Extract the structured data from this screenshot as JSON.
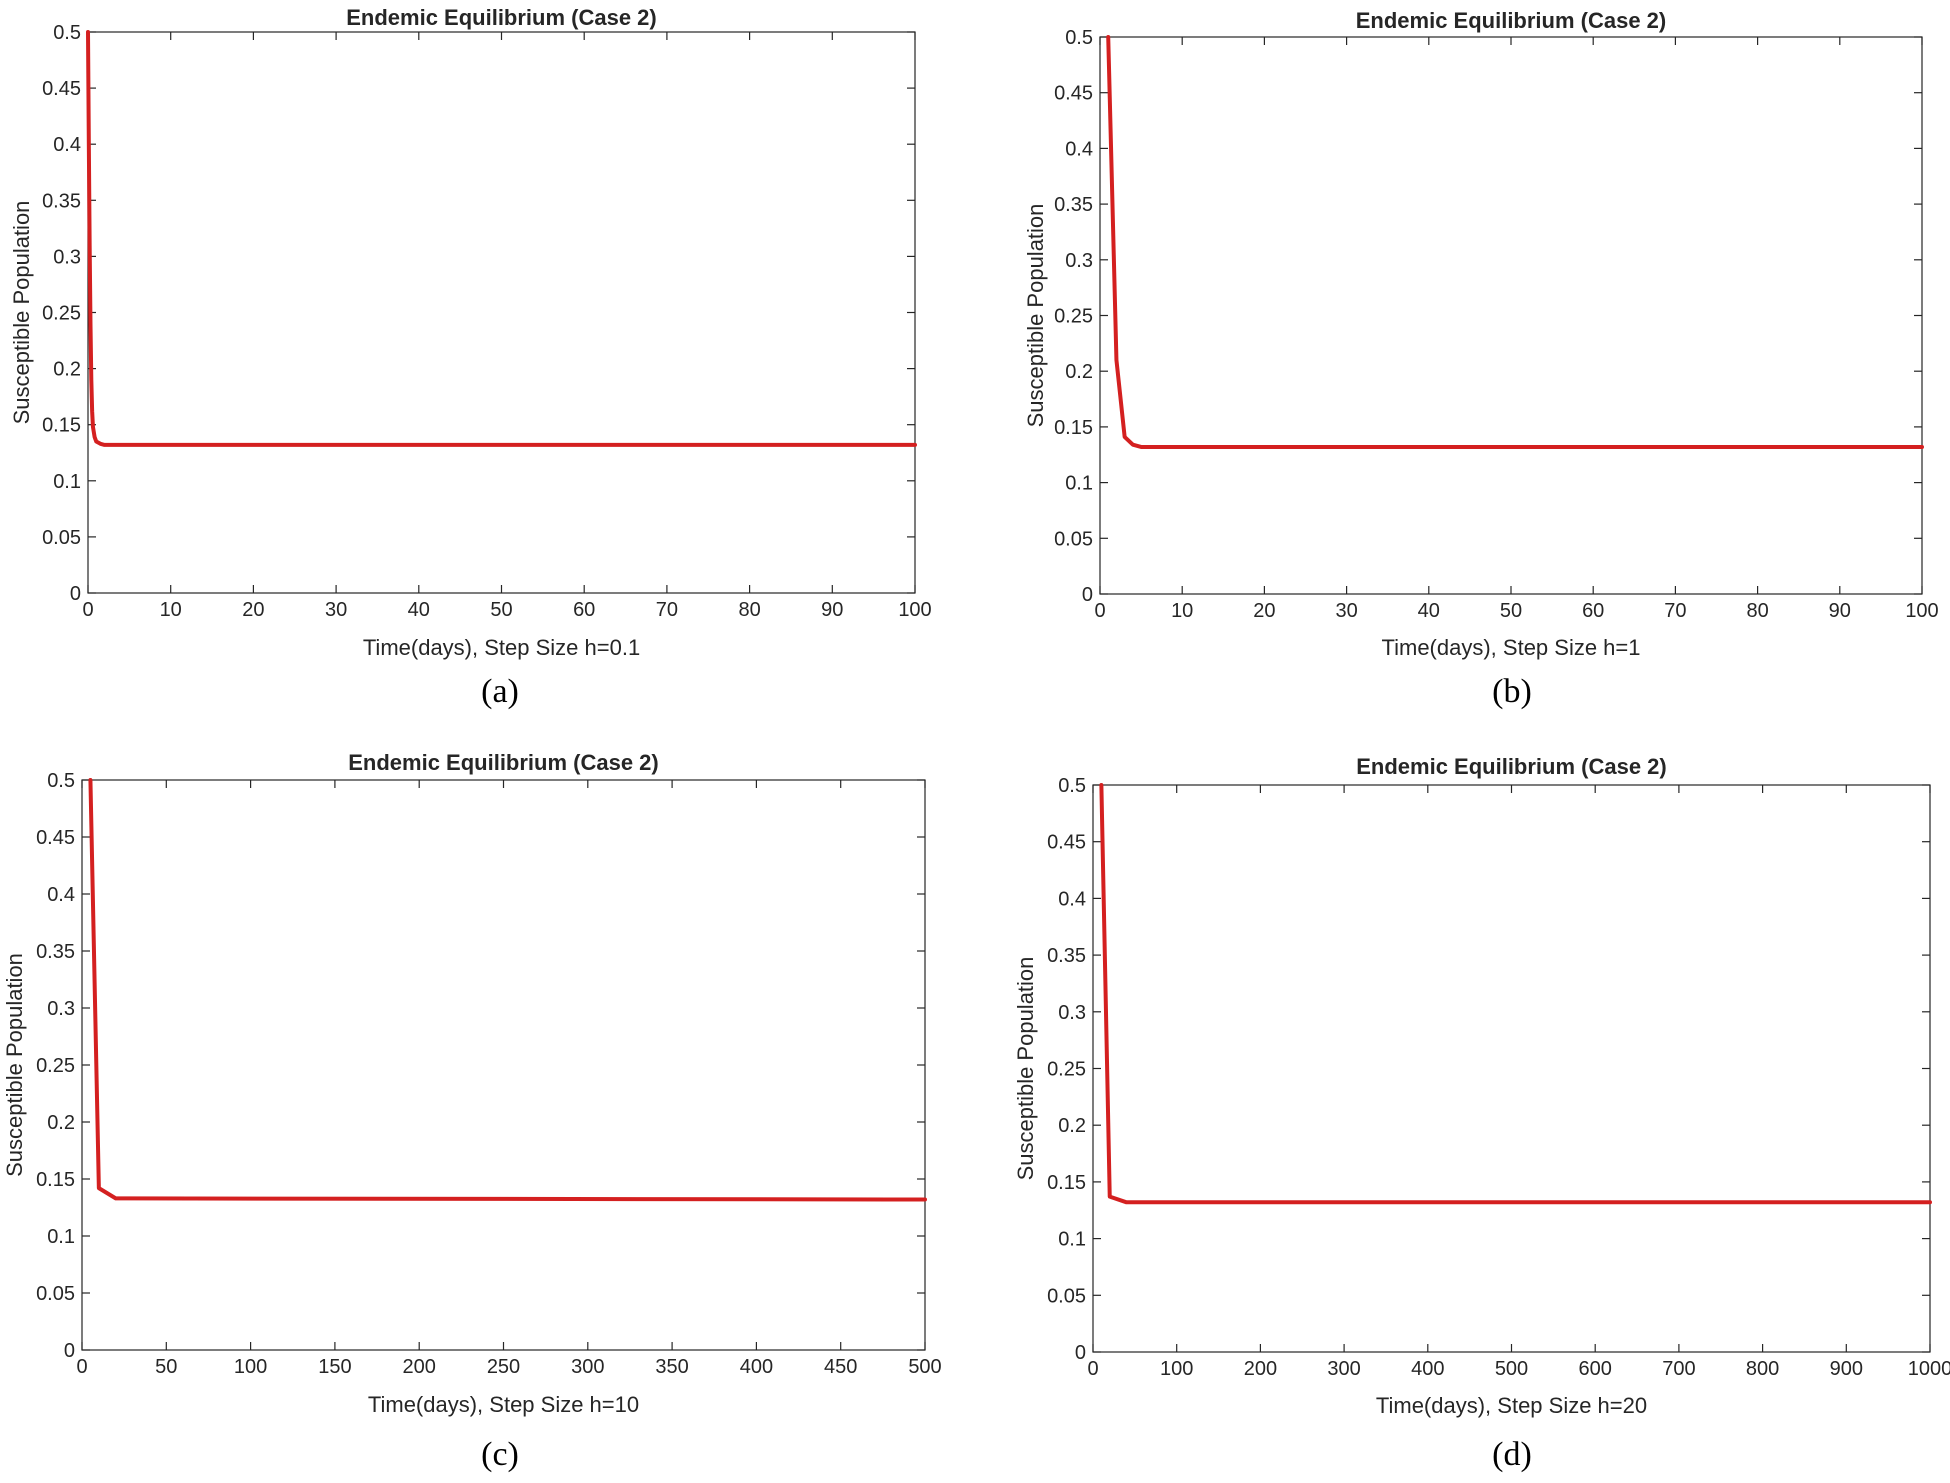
{
  "chart_data": [
    {
      "type": "line",
      "title": "Endemic Equilibrium (Case 2)",
      "xlabel": "Time(days), Step Size h=0.1",
      "ylabel": "Susceptible Population",
      "caption": "(a)",
      "xlim": [
        0,
        100
      ],
      "ylim": [
        0,
        0.5
      ],
      "xticks": [
        0,
        10,
        20,
        30,
        40,
        50,
        60,
        70,
        80,
        90,
        100
      ],
      "yticks": [
        0,
        0.05,
        0.1,
        0.15,
        0.2,
        0.25,
        0.3,
        0.35,
        0.4,
        0.45,
        0.5
      ],
      "series": [
        {
          "name": "Susceptible",
          "color": "#d42020",
          "x": [
            0,
            0.1,
            0.2,
            0.3,
            0.4,
            0.5,
            0.6,
            0.8,
            1.0,
            1.5,
            2,
            100
          ],
          "y": [
            0.5,
            0.4,
            0.31,
            0.24,
            0.19,
            0.162,
            0.148,
            0.139,
            0.135,
            0.133,
            0.132,
            0.132
          ]
        }
      ]
    },
    {
      "type": "line",
      "title": "Endemic Equilibrium (Case 2)",
      "xlabel": "Time(days), Step Size h=1",
      "ylabel": "Susceptible Population",
      "caption": "(b)",
      "xlim": [
        0,
        100
      ],
      "ylim": [
        0,
        0.5
      ],
      "xticks": [
        0,
        10,
        20,
        30,
        40,
        50,
        60,
        70,
        80,
        90,
        100
      ],
      "yticks": [
        0,
        0.05,
        0.1,
        0.15,
        0.2,
        0.25,
        0.3,
        0.35,
        0.4,
        0.45,
        0.5
      ],
      "series": [
        {
          "name": "Susceptible",
          "color": "#d42020",
          "x": [
            1,
            2,
            3,
            4,
            5,
            100
          ],
          "y": [
            0.5,
            0.21,
            0.141,
            0.134,
            0.132,
            0.132
          ]
        }
      ]
    },
    {
      "type": "line",
      "title": "Endemic Equilibrium (Case 2)",
      "xlabel": "Time(days), Step Size h=10",
      "ylabel": "Susceptible Population",
      "caption": "(c)",
      "xlim": [
        0,
        500
      ],
      "ylim": [
        0,
        0.5
      ],
      "xticks": [
        0,
        50,
        100,
        150,
        200,
        250,
        300,
        350,
        400,
        450,
        500
      ],
      "yticks": [
        0,
        0.05,
        0.1,
        0.15,
        0.2,
        0.25,
        0.3,
        0.35,
        0.4,
        0.45,
        0.5
      ],
      "series": [
        {
          "name": "Susceptible",
          "color": "#d42020",
          "x": [
            5,
            10,
            20,
            500
          ],
          "y": [
            0.5,
            0.142,
            0.133,
            0.132
          ]
        }
      ]
    },
    {
      "type": "line",
      "title": "Endemic Equilibrium (Case 2)",
      "xlabel": "Time(days), Step Size h=20",
      "ylabel": "Susceptible Population",
      "caption": "(d)",
      "xlim": [
        0,
        1000
      ],
      "ylim": [
        0,
        0.5
      ],
      "xticks": [
        0,
        100,
        200,
        300,
        400,
        500,
        600,
        700,
        800,
        900,
        1000
      ],
      "yticks": [
        0,
        0.05,
        0.1,
        0.15,
        0.2,
        0.25,
        0.3,
        0.35,
        0.4,
        0.45,
        0.5
      ],
      "series": [
        {
          "name": "Susceptible",
          "color": "#d42020",
          "x": [
            10,
            20,
            40,
            1000
          ],
          "y": [
            0.5,
            0.137,
            0.132,
            0.132
          ]
        }
      ]
    }
  ]
}
